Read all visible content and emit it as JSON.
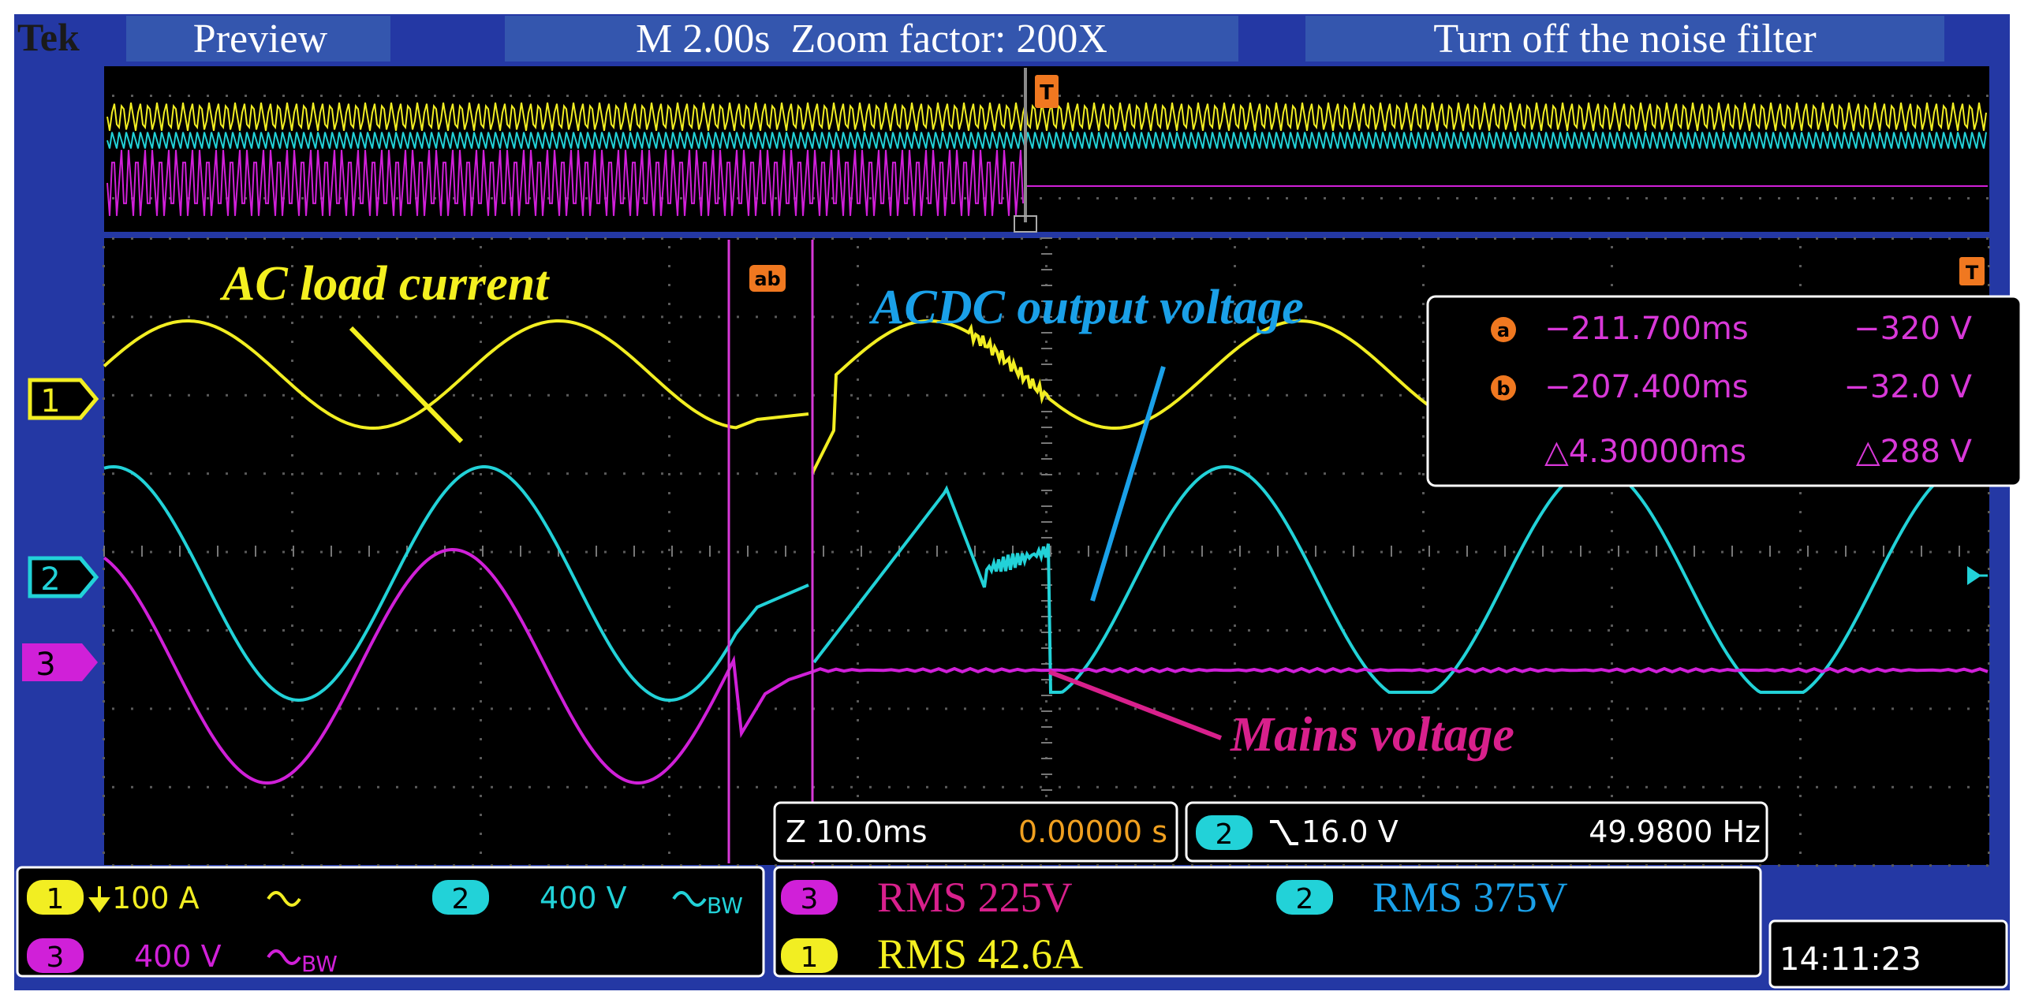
{
  "header": {
    "brand": "Tek",
    "preview_label": "Preview",
    "timebase_label": "M 2.00s  Zoom factor: 200X",
    "event_label": "Turn off the noise filter"
  },
  "annotations": {
    "ac_load_current": "AC load current",
    "acdc_output_voltage": "ACDC output voltage",
    "mains_voltage": "Mains voltage"
  },
  "cursors": {
    "a_marker": "a",
    "b_marker": "b",
    "ab_marker": "ab",
    "a_time": "−211.700ms",
    "a_value": "−320 V",
    "b_time": "−207.400ms",
    "b_value": "−32.0 V",
    "delta_time": "△4.30000ms",
    "delta_value": "△288 V"
  },
  "channels": {
    "ch1": {
      "number": "1",
      "scale": "100 A",
      "color": "#f2ee22"
    },
    "ch2": {
      "number": "2",
      "scale": "400 V",
      "color": "#22d2d8"
    },
    "ch3": {
      "number": "3",
      "scale": "400 V",
      "color": "#d020d8"
    }
  },
  "status": {
    "zoom_scale": "Z 10.0ms",
    "zoom_position": "0.00000 s",
    "trigger_channel": "2",
    "trigger_level": "16.0 V",
    "frequency": "49.9800 Hz",
    "bw_label": "BW",
    "clock": "14:11:23"
  },
  "measurements": {
    "ch3_rms": "RMS 225V",
    "ch1_rms": "RMS 42.6A",
    "ch2_rms": "RMS 375V"
  },
  "colors": {
    "screen_bg": "#000000",
    "frame": "#2438a4",
    "header_box": "#3250a8",
    "cursor_line": "#d838d8",
    "accent_orange": "#f07820",
    "ac_label": "#f4f020",
    "acdc_label": "#1aa0e8",
    "mains_label": "#d8208c"
  }
}
